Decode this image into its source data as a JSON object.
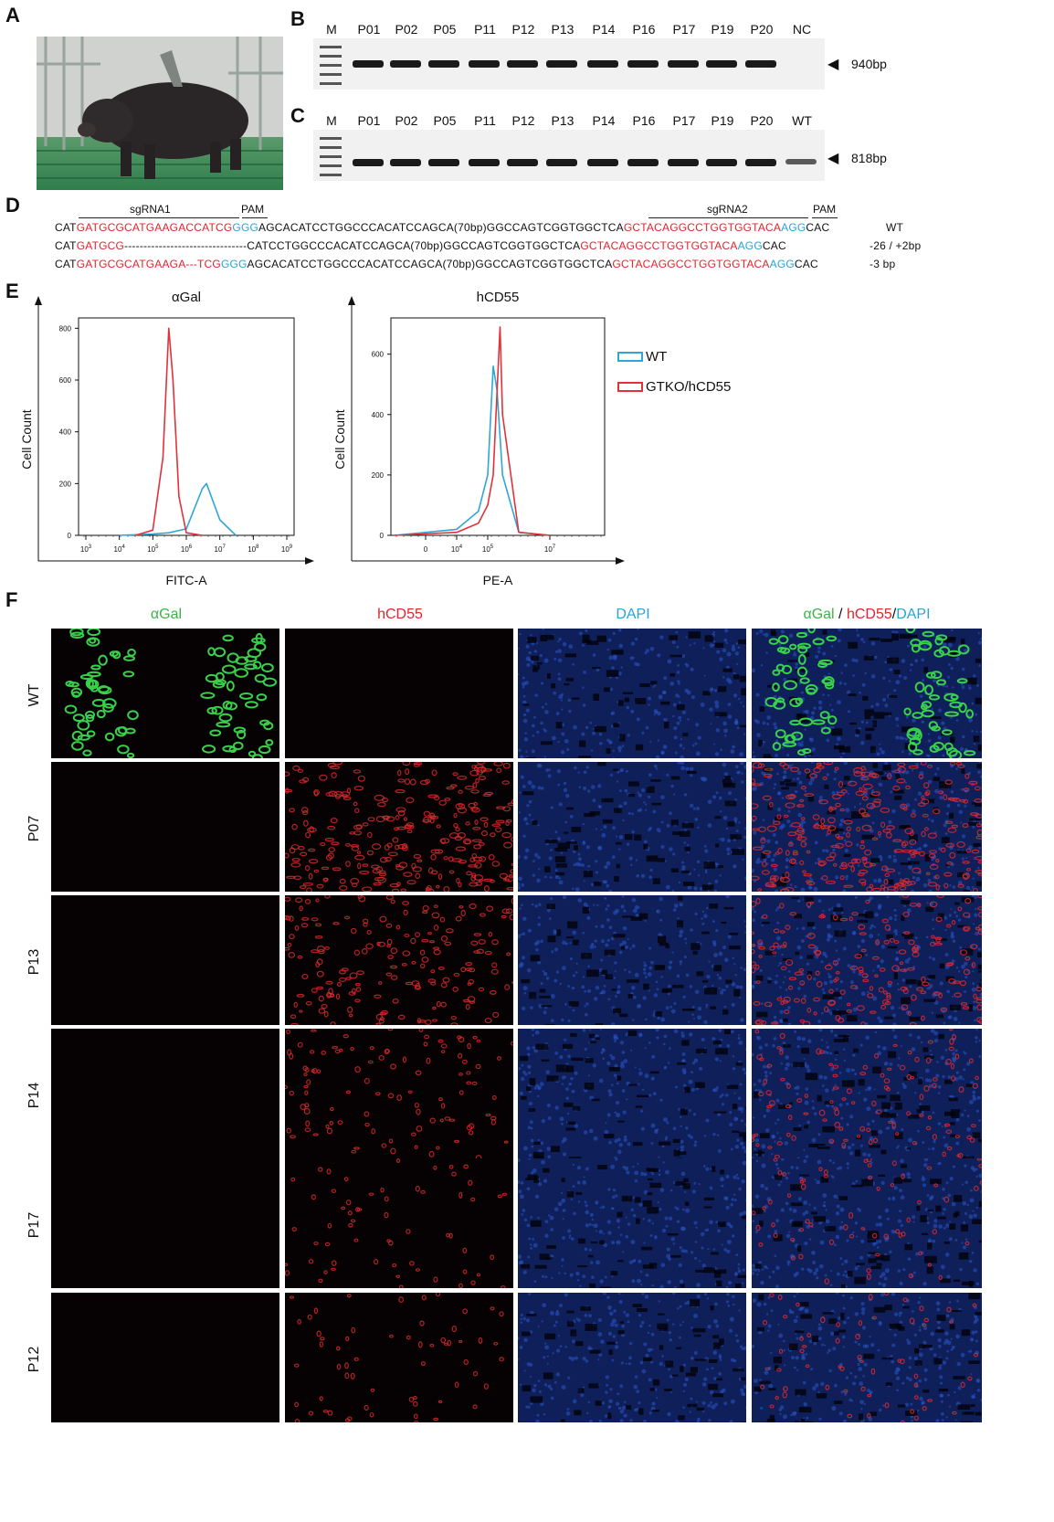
{
  "panels": {
    "a": "A",
    "b": "B",
    "c": "C",
    "d": "D",
    "e": "E",
    "f": "F"
  },
  "gel_b": {
    "lanes": [
      "M",
      "P01",
      "P02",
      "P05",
      "P11",
      "P12",
      "P13",
      "P14",
      "P16",
      "P17",
      "P19",
      "P20",
      "NC"
    ],
    "size": "940bp"
  },
  "gel_c": {
    "lanes": [
      "M",
      "P01",
      "P02",
      "P05",
      "P11",
      "P12",
      "P13",
      "P14",
      "P16",
      "P17",
      "P19",
      "P20",
      "WT"
    ],
    "size": "818bp"
  },
  "seq": {
    "sgrna1": "sgRNA1",
    "pam1": "PAM",
    "sgrna2": "sgRNA2",
    "pam2": "PAM",
    "rows": [
      {
        "p1": "CAT",
        "p2": "GATGCGCATGAAGACCATCG",
        "p3": "GGG",
        "p4": "AGCACATCCTGGCCCACATCCAGCA(70bp)GGCCAGTCGGTGGCTCA",
        "p5": "GCTACAGGCCTGGTGGTACA",
        "p6": "AGG",
        "p7": "CAC",
        "note": "WT"
      },
      {
        "p1": "CAT",
        "p2": "GATGCG",
        "p3": "",
        "p4": "--------------------------------CATCCTGGCCCACATCCAGCA(70bp)GGCCAGTCGGTGGCTCA",
        "p5": "GCTACAGGCCTGGTGGTACA",
        "p6": "AGG",
        "p7": "CAC",
        "note": "-26 / +2bp"
      },
      {
        "p1": "CAT",
        "p2": "GATGCGCATGAAGA---TCG",
        "p3": "GGG",
        "p4": "AGCACATCCTGGCCCACATCCAGCA(70bp)GGCCAGTCGGTGGCTCA",
        "p5": "GCTACAGGCCTGGTGGTACA",
        "p6": "AGG",
        "p7": "CAC",
        "note": "-3 bp"
      }
    ]
  },
  "flow": {
    "colors": {
      "wt": "#2fa6d6",
      "gtko": "#e0323b"
    },
    "legend": [
      "WT",
      "GTKO/hCD55"
    ],
    "left": {
      "title": "αGal",
      "xlabel": "FITC-A",
      "ylabel": "Cell Count",
      "yticks": [
        "0",
        "200",
        "400",
        "600",
        "800"
      ],
      "xticks": [
        {
          "b": "10",
          "e": "3"
        },
        {
          "b": "10",
          "e": "4"
        },
        {
          "b": "10",
          "e": "5"
        },
        {
          "b": "10",
          "e": "6"
        },
        {
          "b": "10",
          "e": "7"
        },
        {
          "b": "10",
          "e": "8"
        },
        {
          "b": "10",
          "e": "9"
        }
      ]
    },
    "right": {
      "title": "hCD55",
      "xlabel": "PE-A",
      "ylabel": "Cell Count",
      "yticks": [
        "0",
        "200",
        "400",
        "600"
      ],
      "xticks": [
        {
          "b": "0",
          "e": ""
        },
        {
          "b": "10",
          "e": "4"
        },
        {
          "b": "10",
          "e": "5"
        },
        {
          "b": "10",
          "e": "7"
        }
      ]
    }
  },
  "chart_data": [
    {
      "type": "area",
      "title": "αGal",
      "xlabel": "FITC-A",
      "ylabel": "Cell Count",
      "x_scale": "log",
      "ylim": [
        0,
        800
      ],
      "series": [
        {
          "name": "WT",
          "x": [
            10000,
            100000,
            300000,
            1000000,
            3000000,
            4000000,
            10000000,
            30000000
          ],
          "y": [
            0,
            5,
            10,
            25,
            180,
            200,
            60,
            0
          ]
        },
        {
          "name": "GTKO/hCD55",
          "x": [
            30000,
            100000,
            200000,
            300000,
            400000,
            600000,
            1000000,
            3000000
          ],
          "y": [
            0,
            20,
            300,
            800,
            600,
            150,
            10,
            0
          ]
        }
      ]
    },
    {
      "type": "area",
      "title": "hCD55",
      "xlabel": "PE-A",
      "ylabel": "Cell Count",
      "x_scale": "log",
      "ylim": [
        0,
        700
      ],
      "series": [
        {
          "name": "WT",
          "x": [
            0,
            10000,
            50000,
            100000,
            150000,
            200000,
            300000,
            1000000,
            10000000
          ],
          "y": [
            0,
            20,
            80,
            200,
            560,
            480,
            200,
            10,
            0
          ]
        },
        {
          "name": "GTKO/hCD55",
          "x": [
            0,
            10000,
            50000,
            100000,
            150000,
            250000,
            300000,
            1000000,
            10000000
          ],
          "y": [
            0,
            10,
            40,
            100,
            200,
            690,
            400,
            10,
            0
          ]
        }
      ]
    }
  ],
  "if": {
    "cols": [
      {
        "parts": [
          {
            "t": "αGal",
            "c": "#3ab54a"
          }
        ]
      },
      {
        "parts": [
          {
            "t": "hCD55",
            "c": "#e0242d"
          }
        ]
      },
      {
        "parts": [
          {
            "t": "DAPI",
            "c": "#27a4d8"
          }
        ]
      },
      {
        "parts": [
          {
            "t": "αGal",
            "c": "#3ab54a"
          },
          {
            "t": " / ",
            "c": "#111"
          },
          {
            "t": "hCD55",
            "c": "#e0242d"
          },
          {
            "t": "/",
            "c": "#111"
          },
          {
            "t": "DAPI",
            "c": "#27a4d8"
          }
        ]
      }
    ],
    "rows": [
      {
        "label": "WT",
        "gal": 0.9,
        "cd55": 0.0
      },
      {
        "label": "P07",
        "gal": 0.0,
        "cd55": 0.9
      },
      {
        "label": "P13",
        "gal": 0.0,
        "cd55": 0.6
      },
      {
        "label": "P14",
        "gal": 0.05,
        "cd55": 0.35
      },
      {
        "label": "P17",
        "gal": 0.0,
        "cd55": 0.2
      },
      {
        "label": "P12",
        "gal": 0.0,
        "cd55": 0.2
      }
    ]
  }
}
